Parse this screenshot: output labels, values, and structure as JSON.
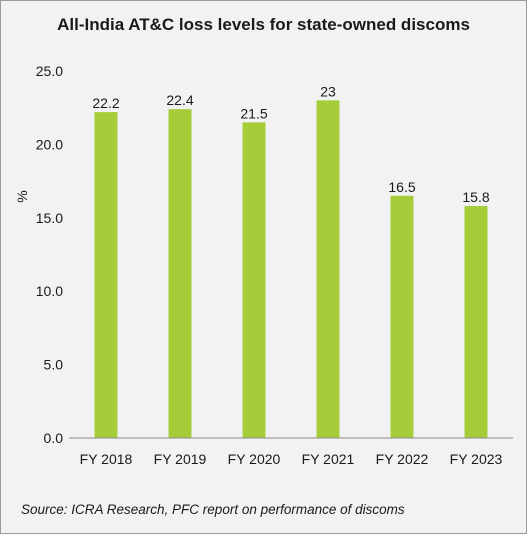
{
  "chart_data": {
    "type": "bar",
    "title": "All-India AT&C loss levels for state-owned discoms",
    "ylabel": "%",
    "xlabel": "",
    "categories": [
      "FY 2018",
      "FY 2019",
      "FY 2020",
      "FY 2021",
      "FY 2022",
      "FY 2023"
    ],
    "values": [
      22.2,
      22.4,
      21.5,
      23,
      16.5,
      15.8
    ],
    "data_labels": [
      "22.2",
      "22.4",
      "21.5",
      "23",
      "16.5",
      "15.8"
    ],
    "ylim": [
      0,
      25
    ],
    "yticks": [
      "0.0",
      "5.0",
      "10.0",
      "15.0",
      "20.0",
      "25.0"
    ],
    "ytick_values": [
      0,
      5,
      10,
      15,
      20,
      25
    ],
    "grid": false,
    "legend": "none",
    "bar_color": "#a5cd39",
    "source": "Source: ICRA Research, PFC report on performance of discoms"
  }
}
